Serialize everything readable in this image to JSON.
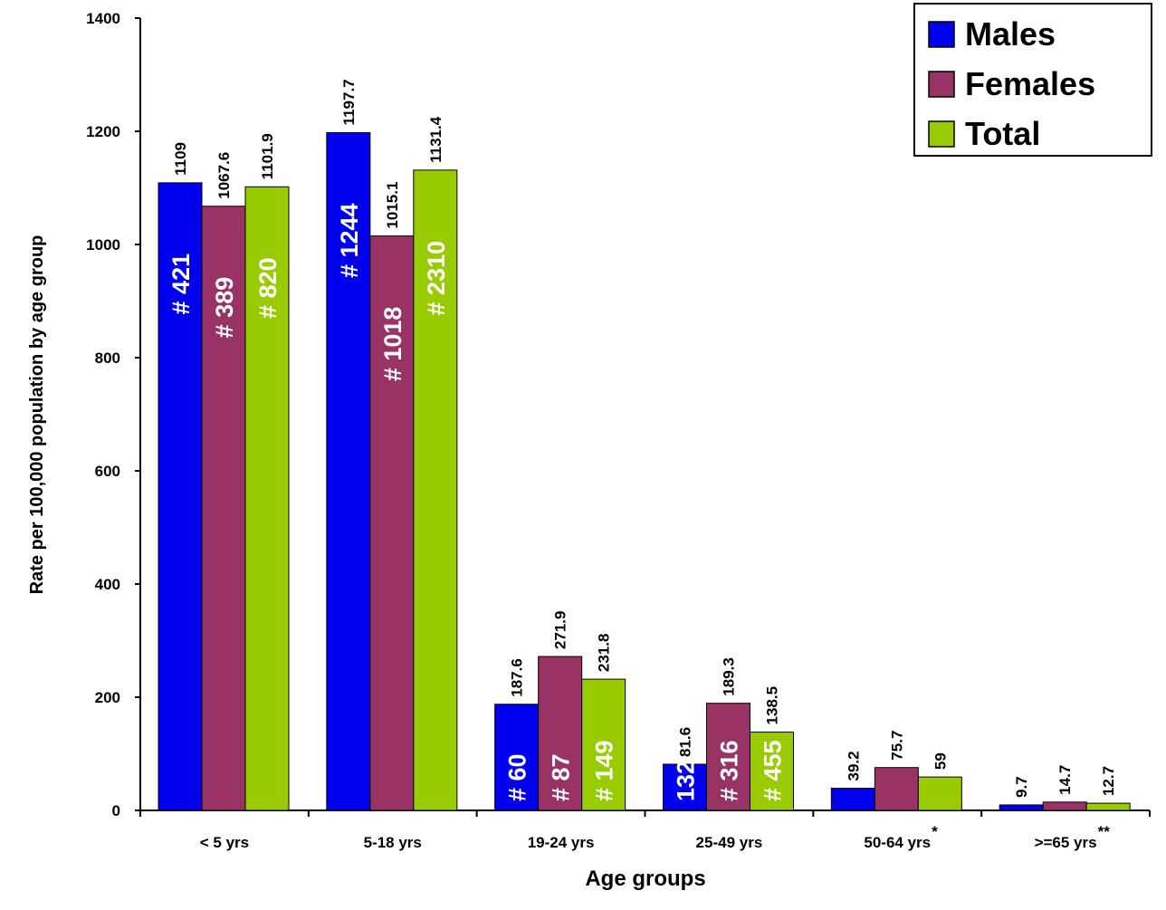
{
  "chart_data": {
    "type": "bar",
    "xlabel": "Age groups",
    "ylabel": "Rate per 100,000 population by age group",
    "ylim": [
      0,
      1400
    ],
    "yticks": [
      0,
      200,
      400,
      600,
      800,
      1000,
      1200,
      1400
    ],
    "grid": false,
    "legend_position": "top-right",
    "categories": [
      "< 5 yrs",
      "5-18 yrs",
      "19-24 yrs",
      "25-49 yrs",
      "50-64 yrs",
      ">=65 yrs"
    ],
    "category_marks": [
      "",
      "",
      "",
      "",
      "*",
      "**"
    ],
    "series": [
      {
        "name": "Males",
        "color": "#0000ee",
        "values": [
          1109,
          1197.7,
          187.6,
          81.6,
          39.2,
          9.7
        ],
        "value_labels": [
          "1109",
          "1197.7",
          "187.6",
          "81.6",
          "39.2",
          "9.7"
        ],
        "counts": [
          "# 421",
          "# 1244",
          "# 60",
          "132",
          "",
          ""
        ]
      },
      {
        "name": "Females",
        "color": "#993366",
        "values": [
          1067.6,
          1015.1,
          271.9,
          189.3,
          75.7,
          14.7
        ],
        "value_labels": [
          "1067.6",
          "1015.1",
          "271.9",
          "189.3",
          "75.7",
          "14.7"
        ],
        "counts": [
          "# 389",
          "# 1018",
          "# 87",
          "# 316",
          "",
          ""
        ]
      },
      {
        "name": "Total",
        "color": "#99cc00",
        "values": [
          1101.9,
          1131.4,
          231.8,
          138.5,
          59,
          12.7
        ],
        "value_labels": [
          "1101.9",
          "1131.4",
          "231.8",
          "138.5",
          "59",
          "12.7"
        ],
        "counts": [
          "# 820",
          "# 2310",
          "# 149",
          "# 455",
          "",
          ""
        ]
      }
    ]
  }
}
